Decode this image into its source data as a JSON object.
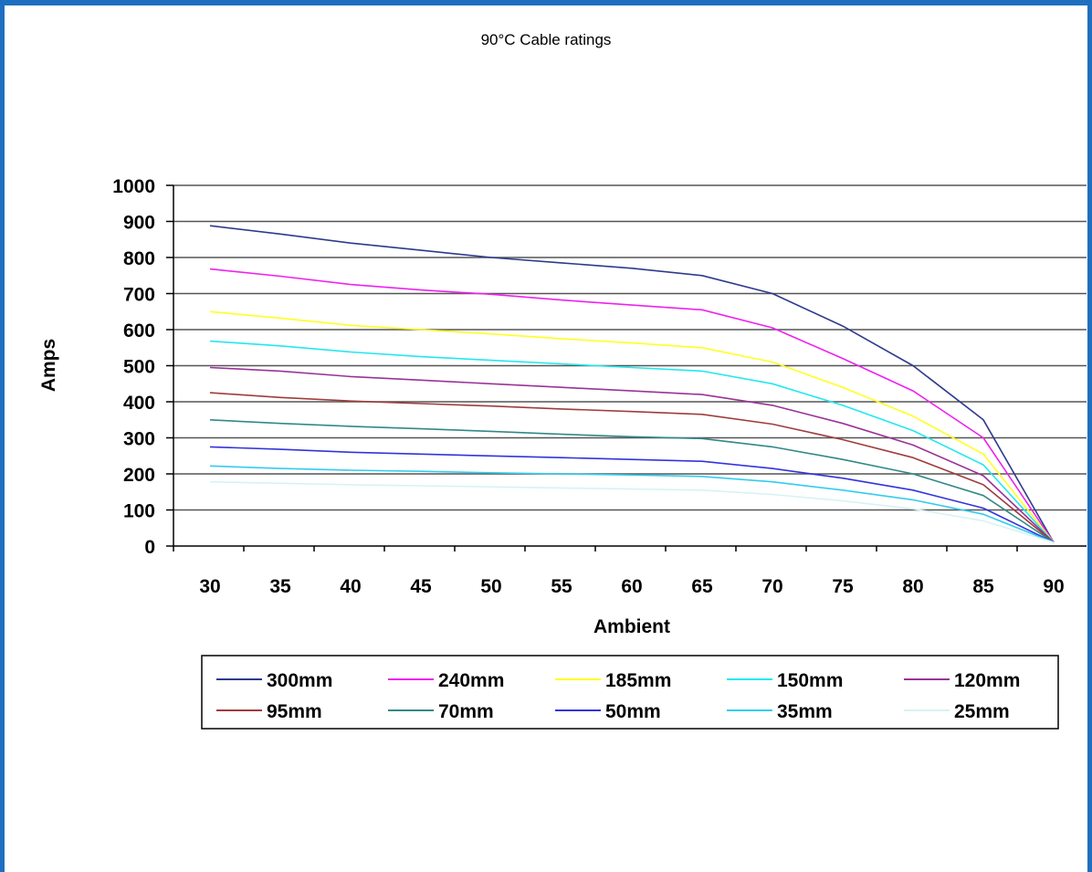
{
  "title": "90°C Cable ratings",
  "chart_data": {
    "type": "line",
    "title": "90°C Cable ratings",
    "xlabel": "Ambient",
    "ylabel": "Amps",
    "categories": [
      "30",
      "35",
      "40",
      "45",
      "50",
      "55",
      "60",
      "65",
      "70",
      "75",
      "80",
      "85",
      "90"
    ],
    "ylim": [
      0,
      1000
    ],
    "yticks": [
      "0",
      "100",
      "200",
      "300",
      "400",
      "500",
      "600",
      "700",
      "800",
      "900",
      "1000"
    ],
    "grid": "horizontal",
    "legend_position": "bottom",
    "series": [
      {
        "name": "300mm",
        "color": "#2e3a8c",
        "values": [
          888,
          865,
          840,
          820,
          800,
          785,
          770,
          750,
          700,
          610,
          500,
          350,
          10
        ]
      },
      {
        "name": "240mm",
        "color": "#ee22ee",
        "values": [
          768,
          748,
          725,
          710,
          698,
          682,
          668,
          655,
          605,
          520,
          430,
          300,
          10
        ]
      },
      {
        "name": "185mm",
        "color": "#ffff22",
        "values": [
          650,
          632,
          612,
          600,
          588,
          575,
          563,
          550,
          510,
          440,
          360,
          255,
          10
        ]
      },
      {
        "name": "150mm",
        "color": "#22e8ee",
        "values": [
          568,
          555,
          538,
          525,
          515,
          505,
          495,
          485,
          450,
          390,
          320,
          225,
          10
        ]
      },
      {
        "name": "120mm",
        "color": "#993399",
        "values": [
          495,
          485,
          470,
          460,
          450,
          440,
          430,
          420,
          390,
          340,
          280,
          195,
          10
        ]
      },
      {
        "name": "95mm",
        "color": "#a03c3c",
        "values": [
          425,
          412,
          402,
          395,
          388,
          380,
          373,
          365,
          338,
          295,
          245,
          170,
          10
        ]
      },
      {
        "name": "70mm",
        "color": "#338888",
        "values": [
          350,
          340,
          332,
          325,
          318,
          310,
          303,
          298,
          275,
          240,
          200,
          140,
          10
        ]
      },
      {
        "name": "50mm",
        "color": "#3333dd",
        "values": [
          275,
          268,
          260,
          255,
          250,
          245,
          240,
          235,
          215,
          188,
          155,
          105,
          10
        ]
      },
      {
        "name": "35mm",
        "color": "#33ccee",
        "values": [
          222,
          215,
          210,
          207,
          203,
          200,
          197,
          193,
          178,
          155,
          128,
          88,
          10
        ]
      },
      {
        "name": "25mm",
        "color": "#d8f2f2",
        "values": [
          178,
          174,
          170,
          167,
          164,
          161,
          158,
          155,
          143,
          125,
          103,
          70,
          10
        ]
      }
    ]
  }
}
